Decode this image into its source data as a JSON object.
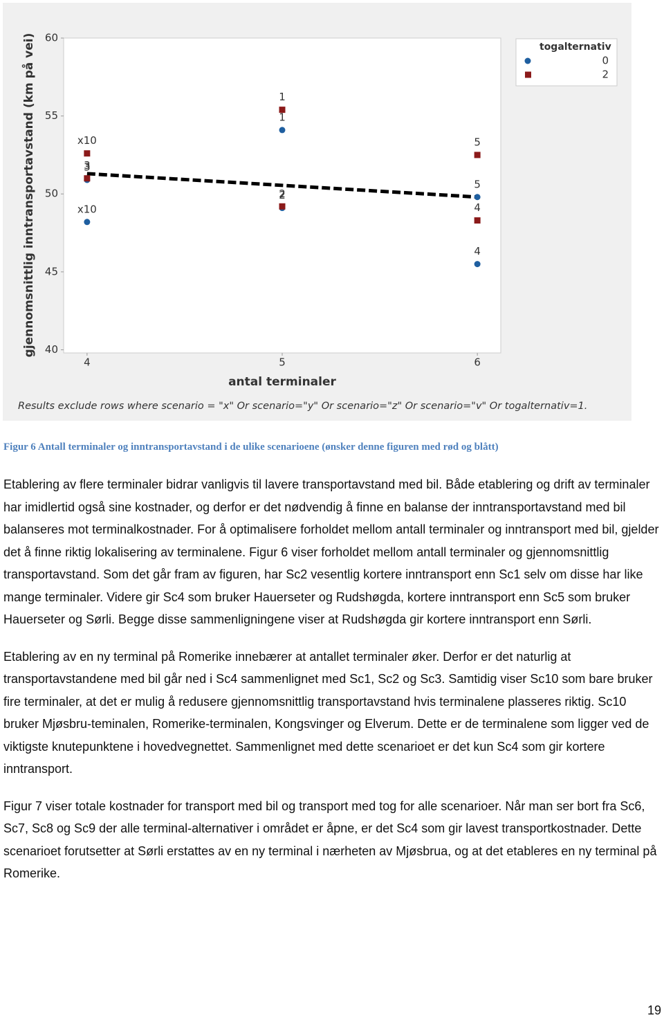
{
  "chart_data": {
    "type": "scatter",
    "y_label": "gjennomsnittlig inntransportavstand (km på vei)",
    "x_label": "antal terminaler",
    "footnote": "Results exclude rows where scenario = \"x\" Or scenario=\"y\" Or scenario=\"z\" Or scenario=\"v\" Or togalternativ=1.",
    "legend_title": "togalternativ",
    "legend": "top-right",
    "xlim": [
      3.88,
      6.12
    ],
    "xticks": [
      4,
      5,
      6
    ],
    "ylim": [
      39.8,
      60
    ],
    "yticks": [
      40,
      45,
      50,
      55,
      60
    ],
    "series": [
      {
        "name": "0",
        "color": "#1f5fa0",
        "marker": "circle",
        "x": [
          4,
          4,
          5,
          5,
          6,
          6
        ],
        "values": [
          48.2,
          50.9,
          54.1,
          49.1,
          49.8,
          45.5
        ],
        "point_labels": [
          "x10",
          "3",
          "1",
          "2",
          "5",
          "4"
        ]
      },
      {
        "name": "2",
        "color": "#8b1a1a",
        "marker": "square",
        "x": [
          4,
          4,
          5,
          5,
          6,
          6
        ],
        "values": [
          52.6,
          51.0,
          55.4,
          49.2,
          52.5,
          48.3
        ],
        "point_labels": [
          "x10",
          "3",
          "1",
          "2",
          "5",
          "4"
        ]
      }
    ],
    "trend": {
      "x": [
        4,
        6
      ],
      "values": [
        51.3,
        49.8
      ],
      "color": "#000000"
    }
  },
  "document": {
    "caption": "Figur 6 Antall terminaler og inntransportavstand i de ulike scenarioene (ønsker denne figuren med rød og blått)",
    "paragraphs": [
      "Etablering av flere terminaler bidrar vanligvis til lavere transportavstand med bil. Både etablering og drift av terminaler har imidlertid også sine kostnader, og derfor er det nødvendig å finne en balanse der inntransportavstand med bil balanseres mot terminalkostnader. For å optimalisere forholdet mellom antall terminaler og inntransport med bil, gjelder det å finne riktig lokalisering av terminalene.  Figur 6 viser forholdet mellom antall terminaler og gjennomsnittlig transportavstand. Som det går fram av figuren, har Sc2 vesentlig kortere inntransport enn Sc1 selv om disse har like mange terminaler. Videre gir Sc4 som bruker Hauerseter og Rudshøgda, kortere inntransport enn Sc5 som bruker Hauerseter og Sørli. Begge disse sammenligningene viser at Rudshøgda gir kortere inntransport enn Sørli.",
      "Etablering av en ny terminal på Romerike innebærer at antallet terminaler øker. Derfor er det naturlig at transportavstandene med bil går ned i Sc4 sammenlignet med Sc1, Sc2 og Sc3. Samtidig viser Sc10 som bare bruker fire terminaler, at det er mulig å redusere gjennomsnittlig transportavstand hvis terminalene plasseres riktig. Sc10 bruker Mjøsbru-teminalen, Romerike-terminalen, Kongsvinger og Elverum. Dette er de terminalene som ligger ved de viktigste knutepunktene i hovedvegnettet. Sammenlignet med dette scenarioet er det kun Sc4 som gir kortere inntransport.",
      "Figur 7 viser totale kostnader for transport med bil og transport med tog for alle scenarioer. Når man ser bort fra Sc6, Sc7, Sc8 og Sc9 der alle terminal-alternativer i området er åpne, er det Sc4 som gir lavest transportkostnader. Dette scenarioet forutsetter at Sørli erstattes av en ny terminal i nærheten av Mjøsbrua, og at det etableres en ny terminal på Romerike."
    ],
    "page_number": "19"
  }
}
